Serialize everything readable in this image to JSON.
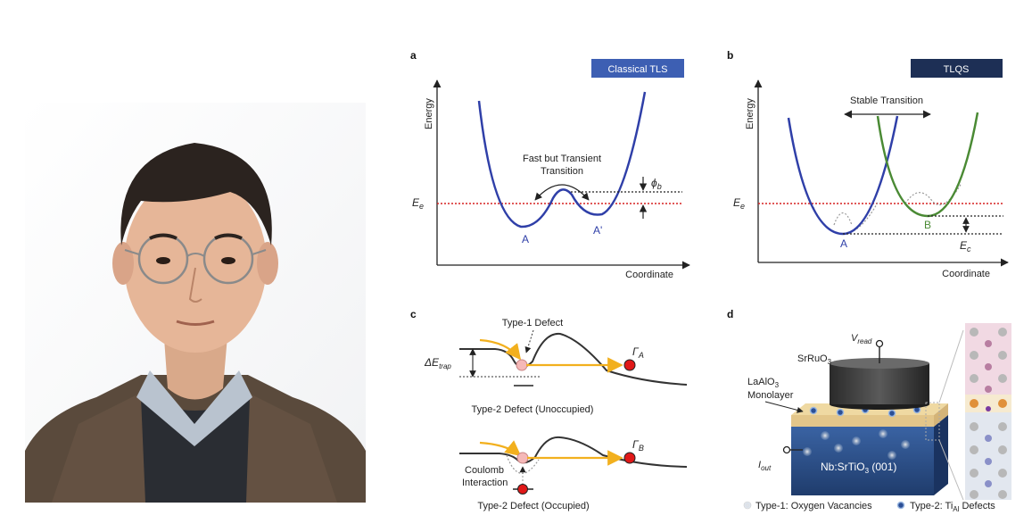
{
  "panels": {
    "a": {
      "letter": "a",
      "badge": "Classical TLS",
      "badge_color": "#3d5fb3",
      "y_axis": "Energy",
      "x_axis": "Coordinate",
      "ee": "E",
      "ee_sub": "e",
      "transition": [
        "Fast but Transient",
        "Transition"
      ],
      "phi": "ϕ",
      "phi_sub": "b",
      "well_a": "A",
      "well_b": "A'"
    },
    "b": {
      "letter": "b",
      "badge": "TLQS",
      "badge_color": "#1d2f55",
      "y_axis": "Energy",
      "x_axis": "Coordinate",
      "ee": "E",
      "ee_sub": "e",
      "transition": "Stable Transition",
      "well_a": "A",
      "well_b": "B",
      "ec": "E",
      "ec_sub": "c"
    },
    "c": {
      "letter": "c",
      "delta": "ΔE",
      "delta_sub": "trap",
      "type1": "Type-1 Defect",
      "type2_un": "Type-2 Defect (Unoccupied)",
      "gamma": "Γ",
      "gamma_a": "A",
      "gamma_b": "B",
      "coulomb": [
        "Coulomb",
        "Interaction"
      ],
      "type2_occ": "Type-2 Defect (Occupied)"
    },
    "d": {
      "letter": "d",
      "sro": "SrRuO",
      "sro_sub": "3",
      "vread": "V",
      "vread_sub": "read",
      "lao": "LaAlO",
      "lao_sub": "3",
      "monolayer": "Monolayer",
      "iout": "I",
      "iout_sub": "out",
      "nbsto": "Nb:SrTiO",
      "nbsto_sub": "3",
      "nbsto_tail": " (001)",
      "legend1": "Type-1: Oxygen Vacancies",
      "legend2_pre": "Type-2: Ti",
      "legend2_sub": "Al",
      "legend2_post": " Defects"
    }
  },
  "colors": {
    "blue_curve": "#2f3fa8",
    "green_curve": "#4a8a34",
    "red_dotted": "#d62020",
    "arrow_yellow": "#f2b01e",
    "defect_red": "#e01818",
    "substrate": "#2c4f86"
  }
}
